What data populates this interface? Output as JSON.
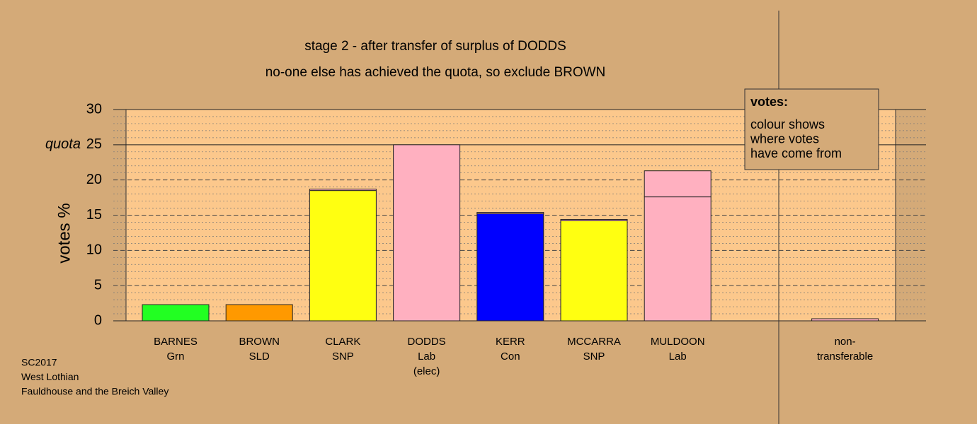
{
  "chart_data": {
    "type": "bar",
    "stacked": true,
    "title": "stage 2 - after transfer of surplus of DODDS",
    "subtitle": "no-one else has achieved the quota, so exclude BROWN",
    "y_label": "votes %",
    "quota": {
      "value": 25,
      "label": "quota"
    },
    "categories": [
      [
        "BARNES",
        "Grn"
      ],
      [
        "BROWN",
        "SLD"
      ],
      [
        "CLARK",
        "SNP"
      ],
      [
        "DODDS",
        "Lab",
        "(elec)"
      ],
      [
        "KERR",
        "Con"
      ],
      [
        "MCCARRA",
        "SNP"
      ],
      [
        "MULDOON",
        "Lab"
      ],
      null,
      [
        "non-",
        "transferable"
      ]
    ],
    "series": [
      {
        "colors": [
          "#22ff22",
          "#ff9900",
          "#ffff11",
          "#ffb0c0",
          "#0000ff",
          "#ffff11",
          "#ffb0c0",
          null,
          "#ffb0c0"
        ],
        "values": [
          2.3,
          2.3,
          18.5,
          25,
          15.2,
          14.2,
          17.6,
          null,
          0
        ]
      },
      {
        "color": "#ffb0c0",
        "values": [
          0,
          0,
          0.2,
          0,
          0.2,
          0.2,
          3.7,
          null,
          0.3
        ]
      }
    ],
    "ylim": [
      0,
      30
    ],
    "yticks": [
      0,
      5,
      10,
      15,
      20,
      25,
      30
    ],
    "minor_grid_step": 1,
    "grid": true,
    "legend": {
      "title": "votes:",
      "lines": [
        "colour shows",
        "where votes",
        "have come from"
      ]
    },
    "footer": [
      "SC2017",
      "West Lothian",
      "Fauldhouse and the Breich Valley"
    ]
  }
}
